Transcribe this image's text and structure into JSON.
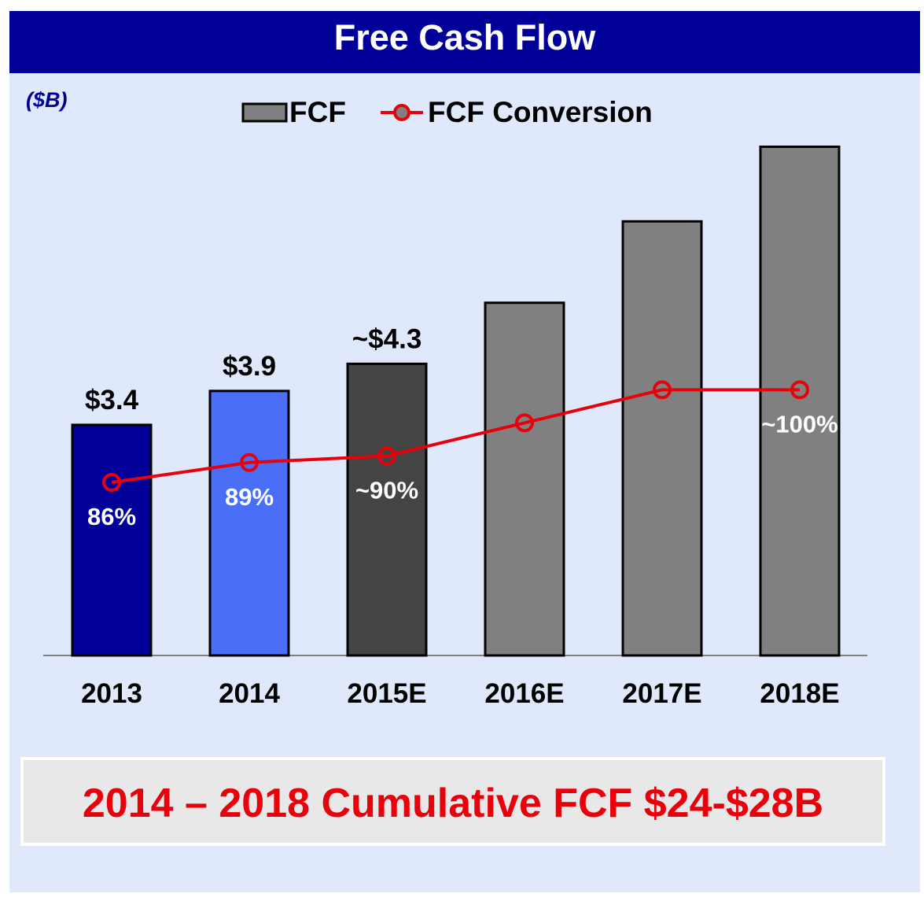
{
  "header": {
    "title": "Free Cash Flow",
    "unit": "($B)"
  },
  "legend": {
    "bar_label": "FCF",
    "line_label": "FCF Conversion"
  },
  "colors": {
    "title_bg": "#000099",
    "panel_bg": "#e0e9fb",
    "line": "#e8000b"
  },
  "chart_data": {
    "type": "bar",
    "title": "Free Cash Flow",
    "ylabel": "($B)",
    "categories": [
      "2013",
      "2014",
      "2015E",
      "2016E",
      "2017E",
      "2018E"
    ],
    "series": [
      {
        "name": "FCF",
        "type": "bar",
        "values": [
          3.4,
          3.9,
          4.3,
          5.2,
          6.4,
          7.5
        ],
        "labels": [
          "$3.4",
          "$3.9",
          "~$4.3",
          "",
          "",
          ""
        ],
        "colors": [
          "#000099",
          "#4a6ef8",
          "#444444",
          "#808080",
          "#808080",
          "#808080"
        ]
      },
      {
        "name": "FCF Conversion",
        "type": "line",
        "values": [
          86,
          89,
          90,
          95,
          100,
          100
        ],
        "labels": [
          "86%",
          "89%",
          "~90%",
          "",
          "",
          "~100%"
        ]
      }
    ],
    "ylim": [
      0,
      8
    ],
    "conversion_range": [
      50,
      110
    ],
    "legend_position": "top"
  },
  "summary": {
    "text": "2014 – 2018 Cumulative FCF $24-$28B"
  }
}
